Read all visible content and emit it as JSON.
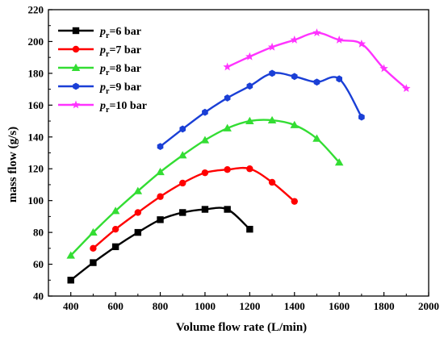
{
  "chart_data": {
    "type": "line",
    "xlabel": "Volume flow rate (L/min)",
    "ylabel": "mass flow (g/s)",
    "xlim": [
      300,
      2000
    ],
    "ylim": [
      40,
      220
    ],
    "xticks": [
      400,
      600,
      800,
      1000,
      1200,
      1400,
      1600,
      1800,
      2000
    ],
    "yticks": [
      40,
      60,
      80,
      100,
      120,
      140,
      160,
      180,
      200,
      220
    ],
    "legend_position": "top-left",
    "grid": false,
    "series": [
      {
        "name": "pr=6 bar",
        "legend_main": "p",
        "legend_sub": "r",
        "legend_rest": "=6 bar",
        "color": "#000000",
        "marker": "square",
        "x": [
          400,
          500,
          600,
          700,
          800,
          900,
          1000,
          1100,
          1200
        ],
        "y": [
          50,
          61,
          71,
          80,
          88,
          92.5,
          94.5,
          94.5,
          82
        ]
      },
      {
        "name": "pr=7 bar",
        "legend_main": "p",
        "legend_sub": "r",
        "legend_rest": "=7 bar",
        "color": "#ff0000",
        "marker": "circle",
        "x": [
          500,
          600,
          700,
          800,
          900,
          1000,
          1100,
          1200,
          1300,
          1400
        ],
        "y": [
          70,
          82,
          92.5,
          102.5,
          111,
          117.5,
          119.5,
          120,
          111.5,
          99.5
        ]
      },
      {
        "name": "pr=8 bar",
        "legend_main": "p",
        "legend_sub": "r",
        "legend_rest": "=8 bar",
        "color": "#33dd33",
        "marker": "triangle",
        "x": [
          400,
          500,
          600,
          700,
          800,
          900,
          1000,
          1100,
          1200,
          1300,
          1400,
          1500,
          1600
        ],
        "y": [
          65.5,
          80,
          93.5,
          106,
          118,
          128.5,
          138,
          145.5,
          150,
          150.5,
          147.5,
          139,
          124
        ]
      },
      {
        "name": "pr=9 bar",
        "legend_main": "p",
        "legend_sub": "r",
        "legend_rest": "=9 bar",
        "color": "#1a3fd6",
        "marker": "hexagon",
        "x": [
          800,
          900,
          1000,
          1100,
          1200,
          1300,
          1400,
          1500,
          1600,
          1700
        ],
        "y": [
          134,
          145,
          155.5,
          164.5,
          172,
          180,
          178,
          174.5,
          176.5,
          152.5
        ]
      },
      {
        "name": "pr=10 bar",
        "legend_main": "p",
        "legend_sub": "r",
        "legend_rest": "=10 bar",
        "color": "#ff33ff",
        "marker": "star",
        "x": [
          1100,
          1200,
          1300,
          1400,
          1500,
          1600,
          1700,
          1800,
          1900
        ],
        "y": [
          184,
          190.5,
          196.5,
          201,
          205.5,
          201,
          198.5,
          183,
          170.5
        ]
      }
    ]
  }
}
